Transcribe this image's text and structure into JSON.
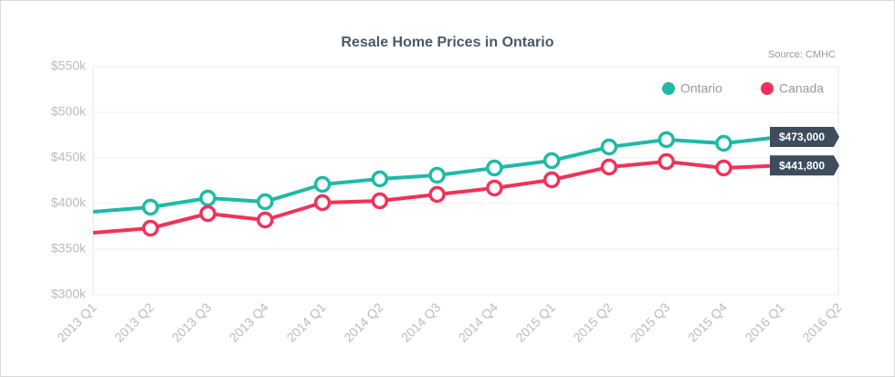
{
  "chart_data": {
    "type": "line",
    "title": "Resale Home Prices in Ontario",
    "source": "Source: CMHC",
    "categories": [
      "2013 Q1",
      "2013 Q2",
      "2013 Q3",
      "2013 Q4",
      "2014 Q1",
      "2014 Q2",
      "2014 Q3",
      "2014 Q4",
      "2015 Q1",
      "2015 Q2",
      "2015 Q3",
      "2015 Q4",
      "2016 Q1",
      "2016 Q2"
    ],
    "series": [
      {
        "name": "Ontario",
        "color": "#1fbaa6",
        "values": [
          391000,
          396000,
          406000,
          402000,
          421000,
          427000,
          431000,
          439000,
          447000,
          462000,
          470000,
          466000,
          473000,
          null
        ],
        "value_labels": [
          null,
          null,
          null,
          null,
          null,
          null,
          null,
          null,
          null,
          null,
          null,
          null,
          "$473,000",
          null
        ]
      },
      {
        "name": "Canada",
        "color": "#f0325a",
        "values": [
          368000,
          373000,
          389000,
          382000,
          401000,
          403000,
          410000,
          417000,
          426000,
          440000,
          446000,
          439000,
          441800,
          null
        ],
        "value_labels": [
          null,
          null,
          null,
          null,
          null,
          null,
          null,
          null,
          null,
          null,
          null,
          null,
          "$441,800",
          null
        ]
      }
    ],
    "ylim": [
      300000,
      550000
    ],
    "yticks": [
      {
        "value": 300000,
        "label": "$300k"
      },
      {
        "value": 350000,
        "label": "$350k"
      },
      {
        "value": 400000,
        "label": "$400k"
      },
      {
        "value": 450000,
        "label": "$450k"
      },
      {
        "value": 500000,
        "label": "$500k"
      },
      {
        "value": 550000,
        "label": "$550k"
      }
    ],
    "grid": true,
    "legend": "top-right"
  }
}
